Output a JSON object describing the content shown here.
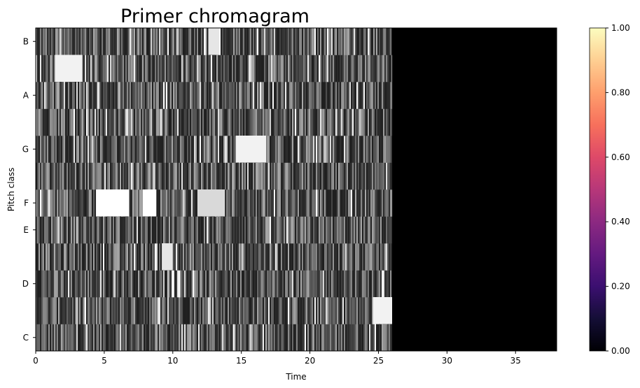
{
  "chart_data": {
    "type": "heatmap",
    "title": "Primer chromagram",
    "xlabel": "Time",
    "ylabel": "Pitch class",
    "xlim": [
      0,
      38
    ],
    "x_ticks": [
      0,
      5,
      10,
      15,
      20,
      25,
      30,
      35
    ],
    "y_tick_labels": [
      "C",
      "D",
      "E",
      "F",
      "G",
      "A",
      "B"
    ],
    "pitch_rows": 12,
    "signal_end_time": 26,
    "colormap": "magma",
    "value_range": [
      0,
      1
    ],
    "colorbar_ticks": [
      "0.00",
      "0.20",
      "0.40",
      "0.60",
      "0.80",
      "1.00"
    ],
    "rendered_colors": "grayscale",
    "bright_regions": [
      {
        "row": 5,
        "x_start": 4.4,
        "x_end": 6.8,
        "value": 1.0
      },
      {
        "row": 5,
        "x_start": 7.8,
        "x_end": 8.8,
        "value": 1.0
      },
      {
        "row": 7,
        "x_start": 14.6,
        "x_end": 16.8,
        "value": 0.95
      },
      {
        "row": 10,
        "x_start": 1.4,
        "x_end": 3.4,
        "value": 0.95
      },
      {
        "row": 3,
        "x_start": 9.2,
        "x_end": 10.0,
        "value": 0.9
      },
      {
        "row": 1,
        "x_start": 24.6,
        "x_end": 26.0,
        "value": 0.95
      },
      {
        "row": 11,
        "x_start": 12.6,
        "x_end": 13.4,
        "value": 0.9
      },
      {
        "row": 5,
        "x_start": 11.8,
        "x_end": 13.8,
        "value": 0.85
      }
    ]
  }
}
